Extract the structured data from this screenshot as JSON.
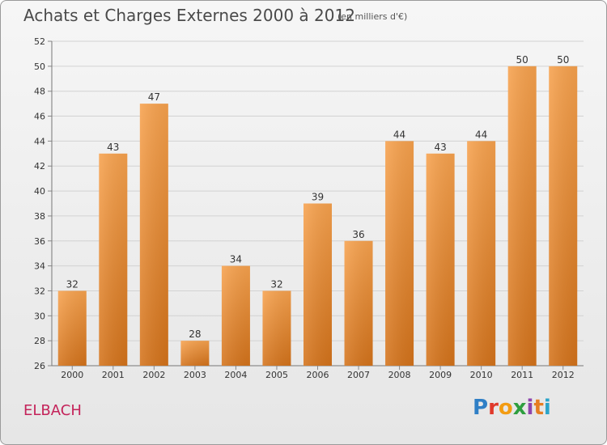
{
  "header": {
    "title": "Achats et Charges Externes 2000 à 2012",
    "unit": "(en milliers d'€)"
  },
  "footer": {
    "commune": "ELBACH",
    "logo": "Proxiti"
  },
  "colors": {
    "bar_light": "#f7a24e",
    "bar_dark": "#d4731b",
    "accent_commune": "#c4235a"
  },
  "chart_data": {
    "type": "bar",
    "title": "Achats et Charges Externes 2000 à 2012",
    "subtitle": "(en milliers d'€)",
    "xlabel": "",
    "ylabel": "",
    "categories": [
      "2000",
      "2001",
      "2002",
      "2003",
      "2004",
      "2005",
      "2006",
      "2007",
      "2008",
      "2009",
      "2010",
      "2011",
      "2012"
    ],
    "values": [
      32,
      43,
      47,
      28,
      34,
      32,
      39,
      36,
      44,
      43,
      44,
      50,
      50
    ],
    "ylim": [
      26,
      52
    ],
    "yticks": [
      26,
      28,
      30,
      32,
      34,
      36,
      38,
      40,
      42,
      44,
      46,
      48,
      50,
      52
    ],
    "grid": true,
    "legend": "none"
  }
}
